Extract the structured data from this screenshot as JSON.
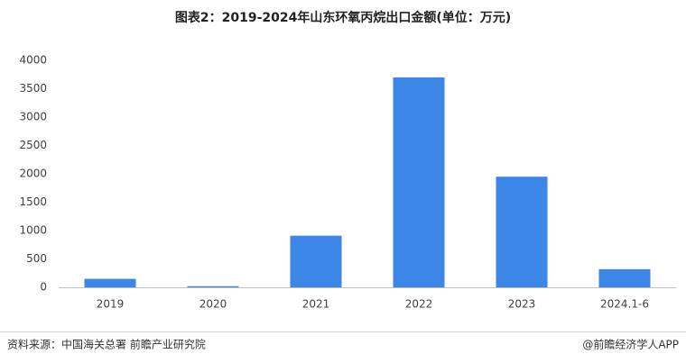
{
  "chart_data": {
    "type": "bar",
    "title": "图表2：2019-2024年山东环氧丙烷出口金额(单位：万元)",
    "categories": [
      "2019",
      "2020",
      "2021",
      "2022",
      "2023",
      "2024.1-6"
    ],
    "values": [
      150,
      20,
      910,
      3700,
      1950,
      320
    ],
    "color": "#3b86e6",
    "ylim": [
      0,
      4000
    ],
    "yticks": [
      0,
      500,
      1000,
      1500,
      2000,
      2500,
      3000,
      3500,
      4000
    ],
    "grid": false
  },
  "footer": {
    "source": "资料来源：中国海关总署 前瞻产业研究院",
    "credit": "@前瞻经济学人APP"
  }
}
